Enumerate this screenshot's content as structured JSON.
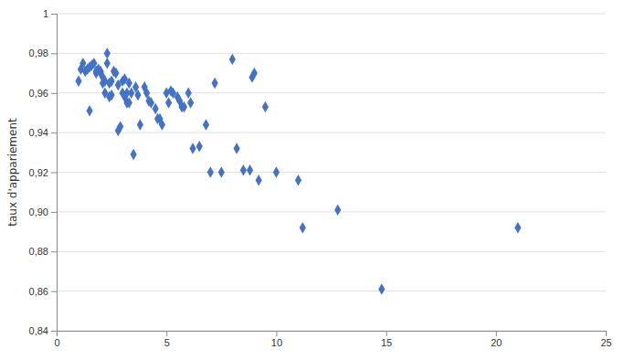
{
  "chart_data": {
    "type": "scatter",
    "ylabel": "taux d'appariement",
    "x": [
      1.0,
      1.1,
      1.2,
      1.3,
      1.4,
      1.5,
      1.5,
      1.6,
      1.7,
      1.8,
      1.8,
      1.9,
      2.0,
      2.0,
      2.1,
      2.1,
      2.2,
      2.2,
      2.3,
      2.3,
      2.4,
      2.4,
      2.5,
      2.5,
      2.6,
      2.7,
      2.8,
      2.8,
      2.9,
      3.0,
      3.0,
      3.1,
      3.1,
      3.2,
      3.2,
      3.3,
      3.3,
      3.4,
      3.5,
      3.6,
      3.7,
      3.8,
      4.0,
      4.1,
      4.2,
      4.3,
      4.5,
      4.6,
      4.7,
      4.8,
      5.0,
      5.1,
      5.2,
      5.3,
      5.5,
      5.6,
      5.7,
      5.8,
      6.0,
      6.1,
      6.2,
      6.5,
      6.8,
      7.0,
      7.2,
      7.5,
      8.0,
      8.2,
      8.5,
      8.8,
      8.9,
      9.0,
      9.2,
      9.5,
      10.0,
      11.0,
      11.2,
      12.8,
      14.8,
      21.0
    ],
    "values": [
      0.966,
      0.972,
      0.975,
      0.971,
      0.972,
      0.973,
      0.951,
      0.974,
      0.975,
      0.97,
      0.971,
      0.972,
      0.97,
      0.971,
      0.968,
      0.965,
      0.966,
      0.96,
      0.975,
      0.98,
      0.965,
      0.958,
      0.966,
      0.959,
      0.971,
      0.97,
      0.941,
      0.964,
      0.943,
      0.966,
      0.96,
      0.967,
      0.958,
      0.96,
      0.955,
      0.955,
      0.965,
      0.96,
      0.929,
      0.963,
      0.959,
      0.944,
      0.963,
      0.96,
      0.956,
      0.955,
      0.952,
      0.947,
      0.947,
      0.944,
      0.96,
      0.955,
      0.961,
      0.96,
      0.958,
      0.956,
      0.953,
      0.953,
      0.96,
      0.955,
      0.932,
      0.933,
      0.944,
      0.92,
      0.965,
      0.92,
      0.977,
      0.932,
      0.921,
      0.921,
      0.968,
      0.97,
      0.916,
      0.953,
      0.92,
      0.916,
      0.892,
      0.901,
      0.861,
      0.892
    ],
    "color": "#4472C4",
    "marker": "diamond",
    "xlim": [
      0,
      25
    ],
    "ylim": [
      0.84,
      1.0
    ],
    "xticks": [
      0,
      5,
      10,
      15,
      20,
      25
    ],
    "yticks": [
      {
        "value": 0.84,
        "label": "0,84"
      },
      {
        "value": 0.86,
        "label": "0,86"
      },
      {
        "value": 0.88,
        "label": "0,88"
      },
      {
        "value": 0.9,
        "label": "0,90"
      },
      {
        "value": 0.92,
        "label": "0,92"
      },
      {
        "value": 0.94,
        "label": "0,94"
      },
      {
        "value": 0.96,
        "label": "0,96"
      },
      {
        "value": 0.98,
        "label": "0,98"
      },
      1
    ],
    "grid": "y"
  }
}
